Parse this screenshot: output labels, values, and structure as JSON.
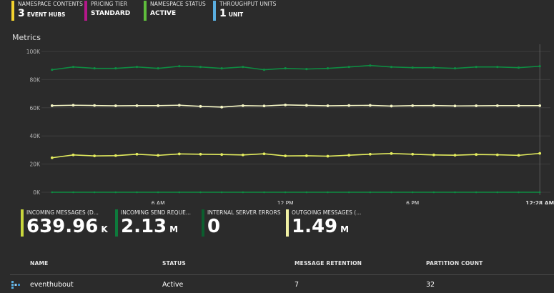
{
  "summary": [
    {
      "label": "NAMESPACE CONTENTS",
      "big": "3",
      "rest": "EVENT HUBS",
      "color": "#f2d22e"
    },
    {
      "label": "PRICING TIER",
      "big": "",
      "rest": "STANDARD",
      "color": "#b4178a"
    },
    {
      "label": "NAMESPACE STATUS",
      "big": "",
      "rest": "ACTIVE",
      "color": "#5fbe3c"
    },
    {
      "label": "THROUGHPUT UNITS",
      "big": "1",
      "rest": "UNIT",
      "color": "#5aaee0"
    }
  ],
  "metrics_title": "Metrics",
  "colors": {
    "green": "#0e8c42",
    "yellow": "#e3ec5e",
    "pale": "#f6f7c6",
    "grid": "#3e3e3e",
    "axis": "#b5b5b5"
  },
  "chart_data": {
    "type": "line",
    "ylim": [
      0,
      100000
    ],
    "y_ticks": [
      {
        "v": 100000,
        "label": "100K"
      },
      {
        "v": 80000,
        "label": "80K"
      },
      {
        "v": 60000,
        "label": "60K"
      },
      {
        "v": 40000,
        "label": "40K"
      },
      {
        "v": 20000,
        "label": "20K"
      },
      {
        "v": 0,
        "label": "0K"
      }
    ],
    "x_tick_labels": [
      "6 AM",
      "12 PM",
      "6 PM",
      "12:28 AM"
    ],
    "series": [
      {
        "values": [
          87000,
          89000,
          88000,
          88000,
          89000,
          88000,
          89500,
          89000,
          88000,
          89000,
          87000,
          88000,
          87500,
          88000,
          89000,
          90000,
          89000,
          88500,
          88500,
          88000,
          89000,
          89000,
          88500,
          89500
        ]
      },
      {
        "values": [
          61500,
          61800,
          61600,
          61400,
          61500,
          61500,
          61800,
          61000,
          60500,
          61500,
          61300,
          62000,
          61700,
          61400,
          61600,
          61700,
          61200,
          61500,
          61600,
          61300,
          61400,
          61500,
          61500,
          61500
        ]
      },
      {
        "values": [
          24500,
          26500,
          25800,
          26000,
          27000,
          26200,
          27200,
          27000,
          26800,
          26500,
          27300,
          25800,
          25900,
          25600,
          26300,
          27000,
          27500,
          27000,
          26500,
          26300,
          26800,
          26600,
          26200,
          27600
        ]
      },
      {
        "values": [
          0,
          0,
          0,
          0,
          0,
          0,
          0,
          0,
          0,
          0,
          0,
          0,
          0,
          0,
          0,
          0,
          0,
          0,
          0,
          0,
          0,
          0,
          0,
          0
        ]
      }
    ]
  },
  "kpis": [
    {
      "label": "INCOMING MESSAGES (D...",
      "value": "639.96",
      "unit": "K",
      "color": "#c8d63c"
    },
    {
      "label": "INCOMING SEND REQUE...",
      "value": "2.13",
      "unit": "M",
      "color": "#0e7a3c"
    },
    {
      "label": "INTERNAL SERVER ERRORS",
      "value": "0",
      "unit": "",
      "color": "#0b5e2e"
    },
    {
      "label": "OUTGOING MESSAGES (...",
      "value": "1.49",
      "unit": "M",
      "color": "#f0f0a4"
    }
  ],
  "table": {
    "headers": [
      "NAME",
      "STATUS",
      "MESSAGE RETENTION",
      "PARTITION COUNT"
    ],
    "rows": [
      [
        "eventhubout",
        "Active",
        "7",
        "32"
      ]
    ]
  }
}
